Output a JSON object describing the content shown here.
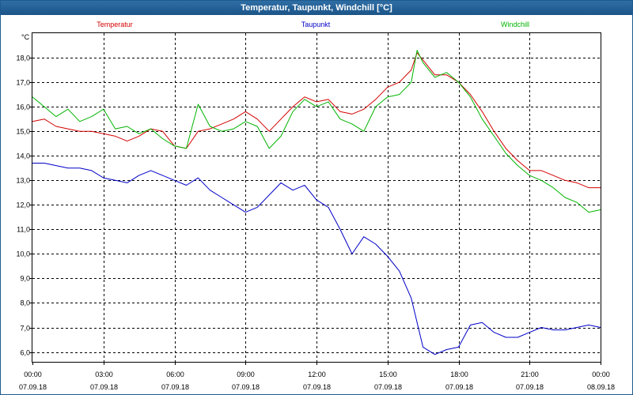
{
  "window": {
    "title": "Temperatur, Taupunkt, Windchill [°C]"
  },
  "colors": {
    "temperatur": "#d40000",
    "taupunkt": "#0000c8",
    "windchill": "#00b400",
    "grid": "#000000"
  },
  "chart_data": {
    "type": "line",
    "title": "Temperatur, Taupunkt, Windchill [°C]",
    "y_unit": "°C",
    "ylim": [
      5.6,
      19.0
    ],
    "xlim": [
      0,
      24
    ],
    "y_ticks": [
      "6,0",
      "7,0",
      "8,0",
      "9,0",
      "10,0",
      "11,0",
      "12,0",
      "13,0",
      "14,0",
      "15,0",
      "16,0",
      "17,0",
      "18,0"
    ],
    "y_tick_values": [
      6,
      7,
      8,
      9,
      10,
      11,
      12,
      13,
      14,
      15,
      16,
      17,
      18
    ],
    "x_ticks": [
      {
        "time": "00:00",
        "date": "07.09.18",
        "h": 0
      },
      {
        "time": "03:00",
        "date": "07.09.18",
        "h": 3
      },
      {
        "time": "06:00",
        "date": "07.09.18",
        "h": 6
      },
      {
        "time": "09:00",
        "date": "07.09.18",
        "h": 9
      },
      {
        "time": "12:00",
        "date": "07.09.18",
        "h": 12
      },
      {
        "time": "15:00",
        "date": "07.09.18",
        "h": 15
      },
      {
        "time": "18:00",
        "date": "07.09.18",
        "h": 18
      },
      {
        "time": "21:00",
        "date": "07.09.18",
        "h": 21
      },
      {
        "time": "00:00",
        "date": "08.09.18",
        "h": 24
      }
    ],
    "legend": [
      "Temperatur",
      "Taupunkt",
      "Windchill"
    ],
    "series": [
      {
        "name": "Temperatur",
        "key": "temperatur",
        "x": [
          0,
          0.5,
          1,
          1.5,
          2,
          2.5,
          3,
          3.5,
          4,
          4.5,
          5,
          5.5,
          6,
          6.5,
          7,
          7.5,
          8,
          8.5,
          9,
          9.5,
          10,
          10.5,
          11,
          11.5,
          12,
          12.5,
          13,
          13.5,
          14,
          14.5,
          15,
          15.5,
          16,
          16.25,
          16.5,
          17,
          17.5,
          18,
          18.5,
          19,
          19.5,
          20,
          20.5,
          21,
          21.5,
          22,
          22.5,
          23,
          23.5,
          24
        ],
        "values": [
          15.4,
          15.5,
          15.2,
          15.1,
          15.0,
          15.0,
          14.9,
          14.8,
          14.6,
          14.8,
          15.1,
          15.0,
          14.4,
          14.3,
          15.0,
          15.1,
          15.3,
          15.5,
          15.8,
          15.5,
          15.0,
          15.5,
          16.0,
          16.4,
          16.2,
          16.3,
          15.8,
          15.7,
          15.9,
          16.3,
          16.8,
          17.0,
          17.5,
          18.2,
          17.9,
          17.3,
          17.3,
          17.0,
          16.5,
          15.8,
          15.0,
          14.3,
          13.8,
          13.4,
          13.4,
          13.2,
          13.0,
          12.9,
          12.7,
          12.7
        ]
      },
      {
        "name": "Taupunkt",
        "key": "taupunkt",
        "x": [
          0,
          0.5,
          1,
          1.5,
          2,
          2.5,
          3,
          3.5,
          4,
          4.5,
          5,
          5.5,
          6,
          6.5,
          7,
          7.5,
          8,
          8.5,
          9,
          9.5,
          10,
          10.5,
          11,
          11.5,
          12,
          12.5,
          13,
          13.5,
          14,
          14.5,
          15,
          15.5,
          16,
          16.5,
          17,
          17.5,
          18,
          18.5,
          19,
          19.5,
          20,
          20.5,
          21,
          21.5,
          22,
          22.5,
          23,
          23.5,
          24
        ],
        "values": [
          13.7,
          13.7,
          13.6,
          13.5,
          13.5,
          13.4,
          13.1,
          13.0,
          12.9,
          13.2,
          13.4,
          13.2,
          13.0,
          12.8,
          13.1,
          12.6,
          12.3,
          12.0,
          11.7,
          11.9,
          12.4,
          12.9,
          12.6,
          12.8,
          12.2,
          11.9,
          11.0,
          10.0,
          10.7,
          10.4,
          9.9,
          9.3,
          8.2,
          6.2,
          5.9,
          6.1,
          6.2,
          7.1,
          7.2,
          6.8,
          6.6,
          6.6,
          6.8,
          7.0,
          6.9,
          6.9,
          7.0,
          7.1,
          7.0
        ]
      },
      {
        "name": "Windchill",
        "key": "windchill",
        "x": [
          0,
          0.5,
          1,
          1.5,
          2,
          2.5,
          3,
          3.5,
          4,
          4.5,
          5,
          5.5,
          6,
          6.5,
          7,
          7.5,
          8,
          8.5,
          9,
          9.5,
          10,
          10.5,
          11,
          11.5,
          12,
          12.5,
          13,
          13.5,
          14,
          14.5,
          15,
          15.5,
          16,
          16.25,
          16.5,
          17,
          17.5,
          18,
          18.5,
          19,
          19.5,
          20,
          20.5,
          21,
          21.5,
          22,
          22.5,
          23,
          23.5,
          24
        ],
        "values": [
          16.4,
          16.0,
          15.6,
          15.9,
          15.4,
          15.6,
          15.9,
          15.1,
          15.2,
          14.9,
          15.1,
          14.7,
          14.4,
          14.3,
          16.1,
          15.2,
          15.0,
          15.1,
          15.4,
          15.2,
          14.3,
          14.8,
          15.8,
          16.3,
          16.0,
          16.2,
          15.5,
          15.3,
          15.0,
          16.0,
          16.4,
          16.5,
          17.0,
          18.3,
          17.8,
          17.2,
          17.4,
          17.0,
          16.4,
          15.5,
          14.8,
          14.1,
          13.6,
          13.2,
          13.0,
          12.7,
          12.3,
          12.1,
          11.7,
          11.8
        ]
      }
    ]
  }
}
